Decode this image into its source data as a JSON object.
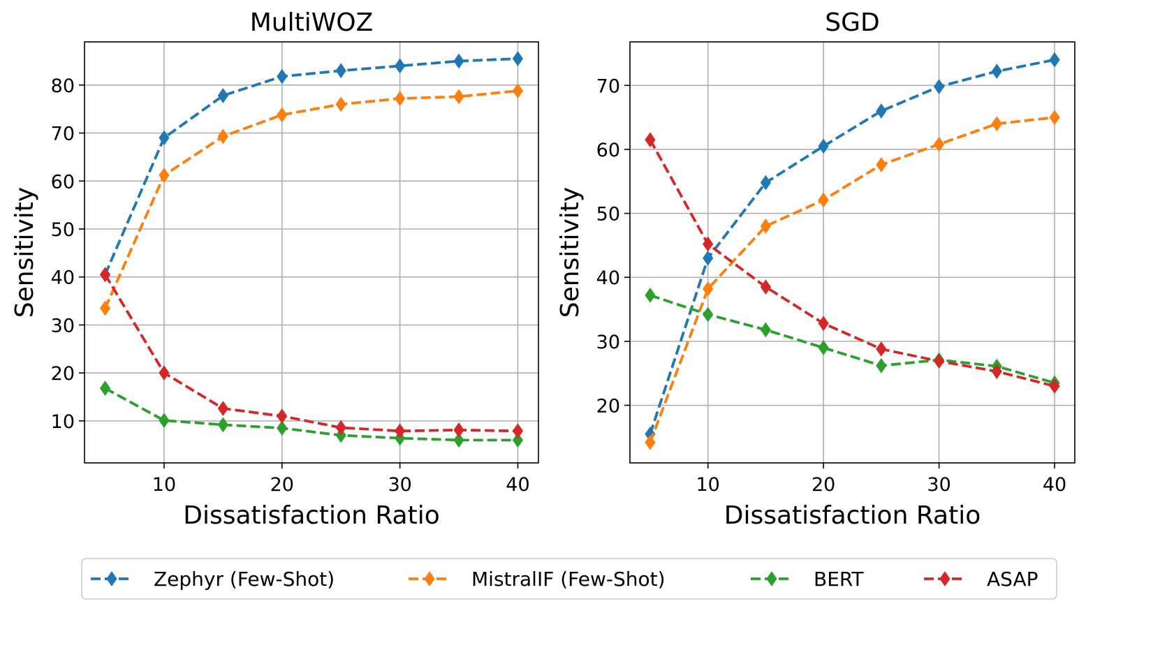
{
  "chart_data": [
    {
      "type": "line",
      "title": "MultiWOZ",
      "xlabel": "Dissatisfaction Ratio",
      "ylabel": "Sensitivity",
      "x": [
        5,
        10,
        15,
        20,
        25,
        30,
        35,
        40
      ],
      "xlim": [
        3.25,
        41.75
      ],
      "ylim": [
        1.25,
        89.0
      ],
      "xticks": [
        10,
        20,
        30,
        40
      ],
      "yticks": [
        10,
        20,
        30,
        40,
        50,
        60,
        70,
        80
      ],
      "grid": true,
      "series": [
        {
          "name": "Zephyr (Few-Shot)",
          "color": "#1f77b4",
          "values": [
            40.5,
            69.0,
            77.8,
            81.8,
            83.0,
            84.0,
            85.0,
            85.5
          ]
        },
        {
          "name": "MistralIF (Few-Shot)",
          "color": "#ff7f0e",
          "values": [
            33.5,
            61.2,
            69.3,
            73.8,
            76.0,
            77.2,
            77.6,
            78.8
          ]
        },
        {
          "name": "BERT",
          "color": "#2ca02c",
          "values": [
            16.8,
            10.1,
            9.2,
            8.5,
            7.0,
            6.4,
            6.0,
            6.0
          ]
        },
        {
          "name": "ASAP",
          "color": "#d62728",
          "values": [
            40.5,
            20.0,
            12.6,
            11.0,
            8.6,
            7.9,
            8.1,
            7.9
          ]
        }
      ]
    },
    {
      "type": "line",
      "title": "SGD",
      "xlabel": "Dissatisfaction Ratio",
      "ylabel": "Sensitivity",
      "x": [
        5,
        10,
        15,
        20,
        25,
        30,
        35,
        40
      ],
      "xlim": [
        3.25,
        41.75
      ],
      "ylim": [
        11.0,
        76.8
      ],
      "xticks": [
        10,
        20,
        30,
        40
      ],
      "yticks": [
        20,
        30,
        40,
        50,
        60,
        70
      ],
      "grid": true,
      "series": [
        {
          "name": "Zephyr (Few-Shot)",
          "color": "#1f77b4",
          "values": [
            15.5,
            43.0,
            54.8,
            60.5,
            66.0,
            69.8,
            72.2,
            74.0
          ]
        },
        {
          "name": "MistralIF (Few-Shot)",
          "color": "#ff7f0e",
          "values": [
            14.2,
            38.2,
            48.0,
            52.1,
            57.6,
            60.8,
            64.0,
            65.0
          ]
        },
        {
          "name": "BERT",
          "color": "#2ca02c",
          "values": [
            37.2,
            34.2,
            31.8,
            29.0,
            26.2,
            27.1,
            26.1,
            23.5
          ]
        },
        {
          "name": "ASAP",
          "color": "#d62728",
          "values": [
            61.5,
            45.2,
            38.5,
            32.8,
            28.8,
            26.9,
            25.3,
            23.0
          ]
        }
      ]
    }
  ],
  "legend": {
    "position": "bottom-center",
    "items": [
      {
        "label": "Zephyr (Few-Shot)",
        "color": "#1f77b4"
      },
      {
        "label": "MistralIF (Few-Shot)",
        "color": "#ff7f0e"
      },
      {
        "label": "BERT",
        "color": "#2ca02c"
      },
      {
        "label": "ASAP",
        "color": "#d62728"
      }
    ]
  }
}
